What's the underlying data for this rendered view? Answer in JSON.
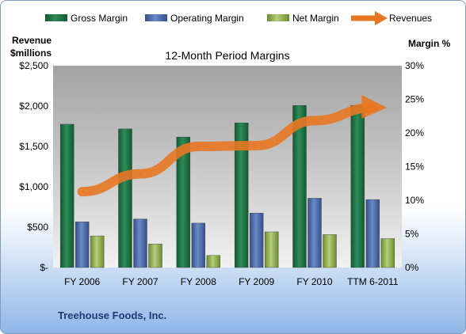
{
  "chart_data": {
    "type": "bar",
    "title": "12-Month Period Margins",
    "left_axis_label_line1": "Revenue",
    "left_axis_label_line2": "$millions",
    "right_axis_label": "Margin %",
    "footer": "Treehouse Foods, Inc.",
    "categories": [
      "FY 2006",
      "FY 2007",
      "FY 2008",
      "FY 2009",
      "FY 2010",
      "TTM 6-2011"
    ],
    "left_ylim": [
      0,
      2500
    ],
    "left_ticks": [
      {
        "value": 0,
        "label": "$-"
      },
      {
        "value": 500,
        "label": "$500"
      },
      {
        "value": 1000,
        "label": "$1,000"
      },
      {
        "value": 1500,
        "label": "$1,500"
      },
      {
        "value": 2000,
        "label": "$2,000"
      },
      {
        "value": 2500,
        "label": "$2,500"
      }
    ],
    "right_ylim": [
      0,
      30
    ],
    "right_ticks": [
      {
        "value": 0,
        "label": "0%"
      },
      {
        "value": 5,
        "label": "5%"
      },
      {
        "value": 10,
        "label": "10%"
      },
      {
        "value": 15,
        "label": "15%"
      },
      {
        "value": 20,
        "label": "20%"
      },
      {
        "value": 25,
        "label": "25%"
      },
      {
        "value": 30,
        "label": "30%"
      }
    ],
    "series": [
      {
        "name": "Gross Margin",
        "axis": "right",
        "kind": "bar",
        "color": "#217346",
        "values": [
          21.3,
          20.6,
          19.4,
          21.5,
          24.1,
          24.1
        ]
      },
      {
        "name": "Operating Margin",
        "axis": "right",
        "kind": "bar",
        "color": "#4f6fae",
        "values": [
          6.8,
          7.2,
          6.6,
          8.1,
          10.3,
          10.1
        ]
      },
      {
        "name": "Net Margin",
        "axis": "right",
        "kind": "bar",
        "color": "#9bbb59",
        "values": [
          4.7,
          3.5,
          1.8,
          5.3,
          4.9,
          4.3
        ]
      },
      {
        "name": "Revenues",
        "axis": "left",
        "kind": "line",
        "color": "#e87722",
        "values": [
          940,
          1160,
          1500,
          1510,
          1820,
          1980
        ]
      }
    ],
    "grid": "none",
    "legend_position": "top"
  }
}
